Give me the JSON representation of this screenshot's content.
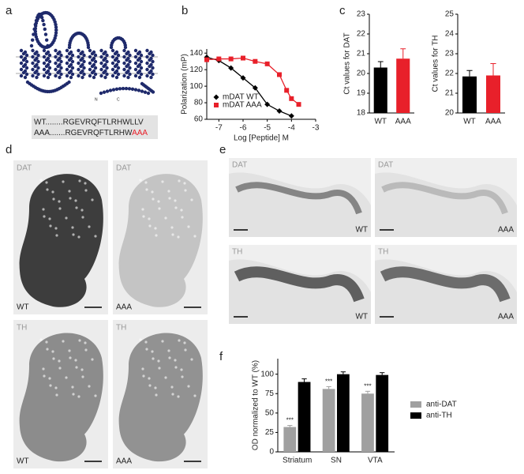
{
  "panel_labels": [
    "a",
    "b",
    "c",
    "d",
    "e",
    "f"
  ],
  "topology_labels": {
    "n": "N",
    "c": "C"
  },
  "sequence": {
    "wt": "WT........RGEVRQFTLRHWLLV",
    "aaa": "AAA.......RGEVRQFTLRHW",
    "aaa_mutation": "AAA"
  },
  "micrographs_d": [
    {
      "stain": "DAT",
      "genotype": "WT"
    },
    {
      "stain": "DAT",
      "genotype": "AAA"
    },
    {
      "stain": "TH",
      "genotype": "WT"
    },
    {
      "stain": "TH",
      "genotype": "AAA"
    }
  ],
  "micrographs_e": [
    {
      "stain": "DAT",
      "genotype": "WT"
    },
    {
      "stain": "DAT",
      "genotype": "AAA"
    },
    {
      "stain": "TH",
      "genotype": "WT"
    },
    {
      "stain": "TH",
      "genotype": "AAA"
    }
  ],
  "chart_data": [
    {
      "type": "line",
      "xlabel": "Log [Peptide] M",
      "ylabel": "Polarization (mP)",
      "xlim": [
        -7.5,
        -3
      ],
      "xticks": [
        -7,
        -6,
        -5,
        -4,
        -3
      ],
      "ylim": [
        60,
        145
      ],
      "yticks": [
        60,
        80,
        100,
        120,
        140
      ],
      "legend": "lower left",
      "series": [
        {
          "name": "mDAT WT",
          "color": "#000000",
          "marker": "diamond",
          "x": [
            -7.5,
            -7,
            -6.5,
            -6,
            -5.5,
            -5,
            -4.5,
            -4
          ],
          "values": [
            135,
            131,
            122,
            110,
            98,
            78,
            70,
            64
          ]
        },
        {
          "name": "mDAT AAA",
          "color": "#e8202a",
          "marker": "square",
          "x": [
            -7.5,
            -7,
            -6.5,
            -6,
            -5.5,
            -5,
            -4.5,
            -4.2,
            -4,
            -3.7
          ],
          "values": [
            132,
            133,
            133,
            134,
            130,
            127,
            114,
            95,
            85,
            78
          ]
        }
      ]
    },
    {
      "type": "bar",
      "ylabel": "Ct values for DAT",
      "categories": [
        "WT",
        "AAA"
      ],
      "values": [
        20.3,
        20.75
      ],
      "errors": [
        0.3,
        0.5
      ],
      "colors": [
        "#000000",
        "#e8202a"
      ],
      "ylim": [
        18,
        23
      ],
      "yticks": [
        18,
        19,
        20,
        21,
        22,
        23
      ]
    },
    {
      "type": "bar",
      "ylabel": "Ct values for TH",
      "categories": [
        "WT",
        "AAA"
      ],
      "values": [
        21.85,
        21.9
      ],
      "errors": [
        0.3,
        0.6
      ],
      "colors": [
        "#000000",
        "#e8202a"
      ],
      "ylim": [
        20,
        25
      ],
      "yticks": [
        20,
        21,
        22,
        23,
        24,
        25
      ]
    },
    {
      "type": "grouped-bar",
      "ylabel": "OD normalized to WT (%)",
      "categories": [
        "Striatum",
        "SN",
        "VTA"
      ],
      "ylim": [
        0,
        120
      ],
      "yticks": [
        0,
        25,
        50,
        75,
        100
      ],
      "legend": "right",
      "series": [
        {
          "name": "anti-DAT",
          "color": "#a0a0a0",
          "values": [
            32,
            81,
            75
          ],
          "errors": [
            2,
            3,
            3
          ],
          "significance": [
            "***",
            "***",
            "***"
          ]
        },
        {
          "name": "anti-TH",
          "color": "#000000",
          "values": [
            90,
            100,
            99
          ],
          "errors": [
            4,
            3,
            3
          ]
        }
      ]
    }
  ]
}
